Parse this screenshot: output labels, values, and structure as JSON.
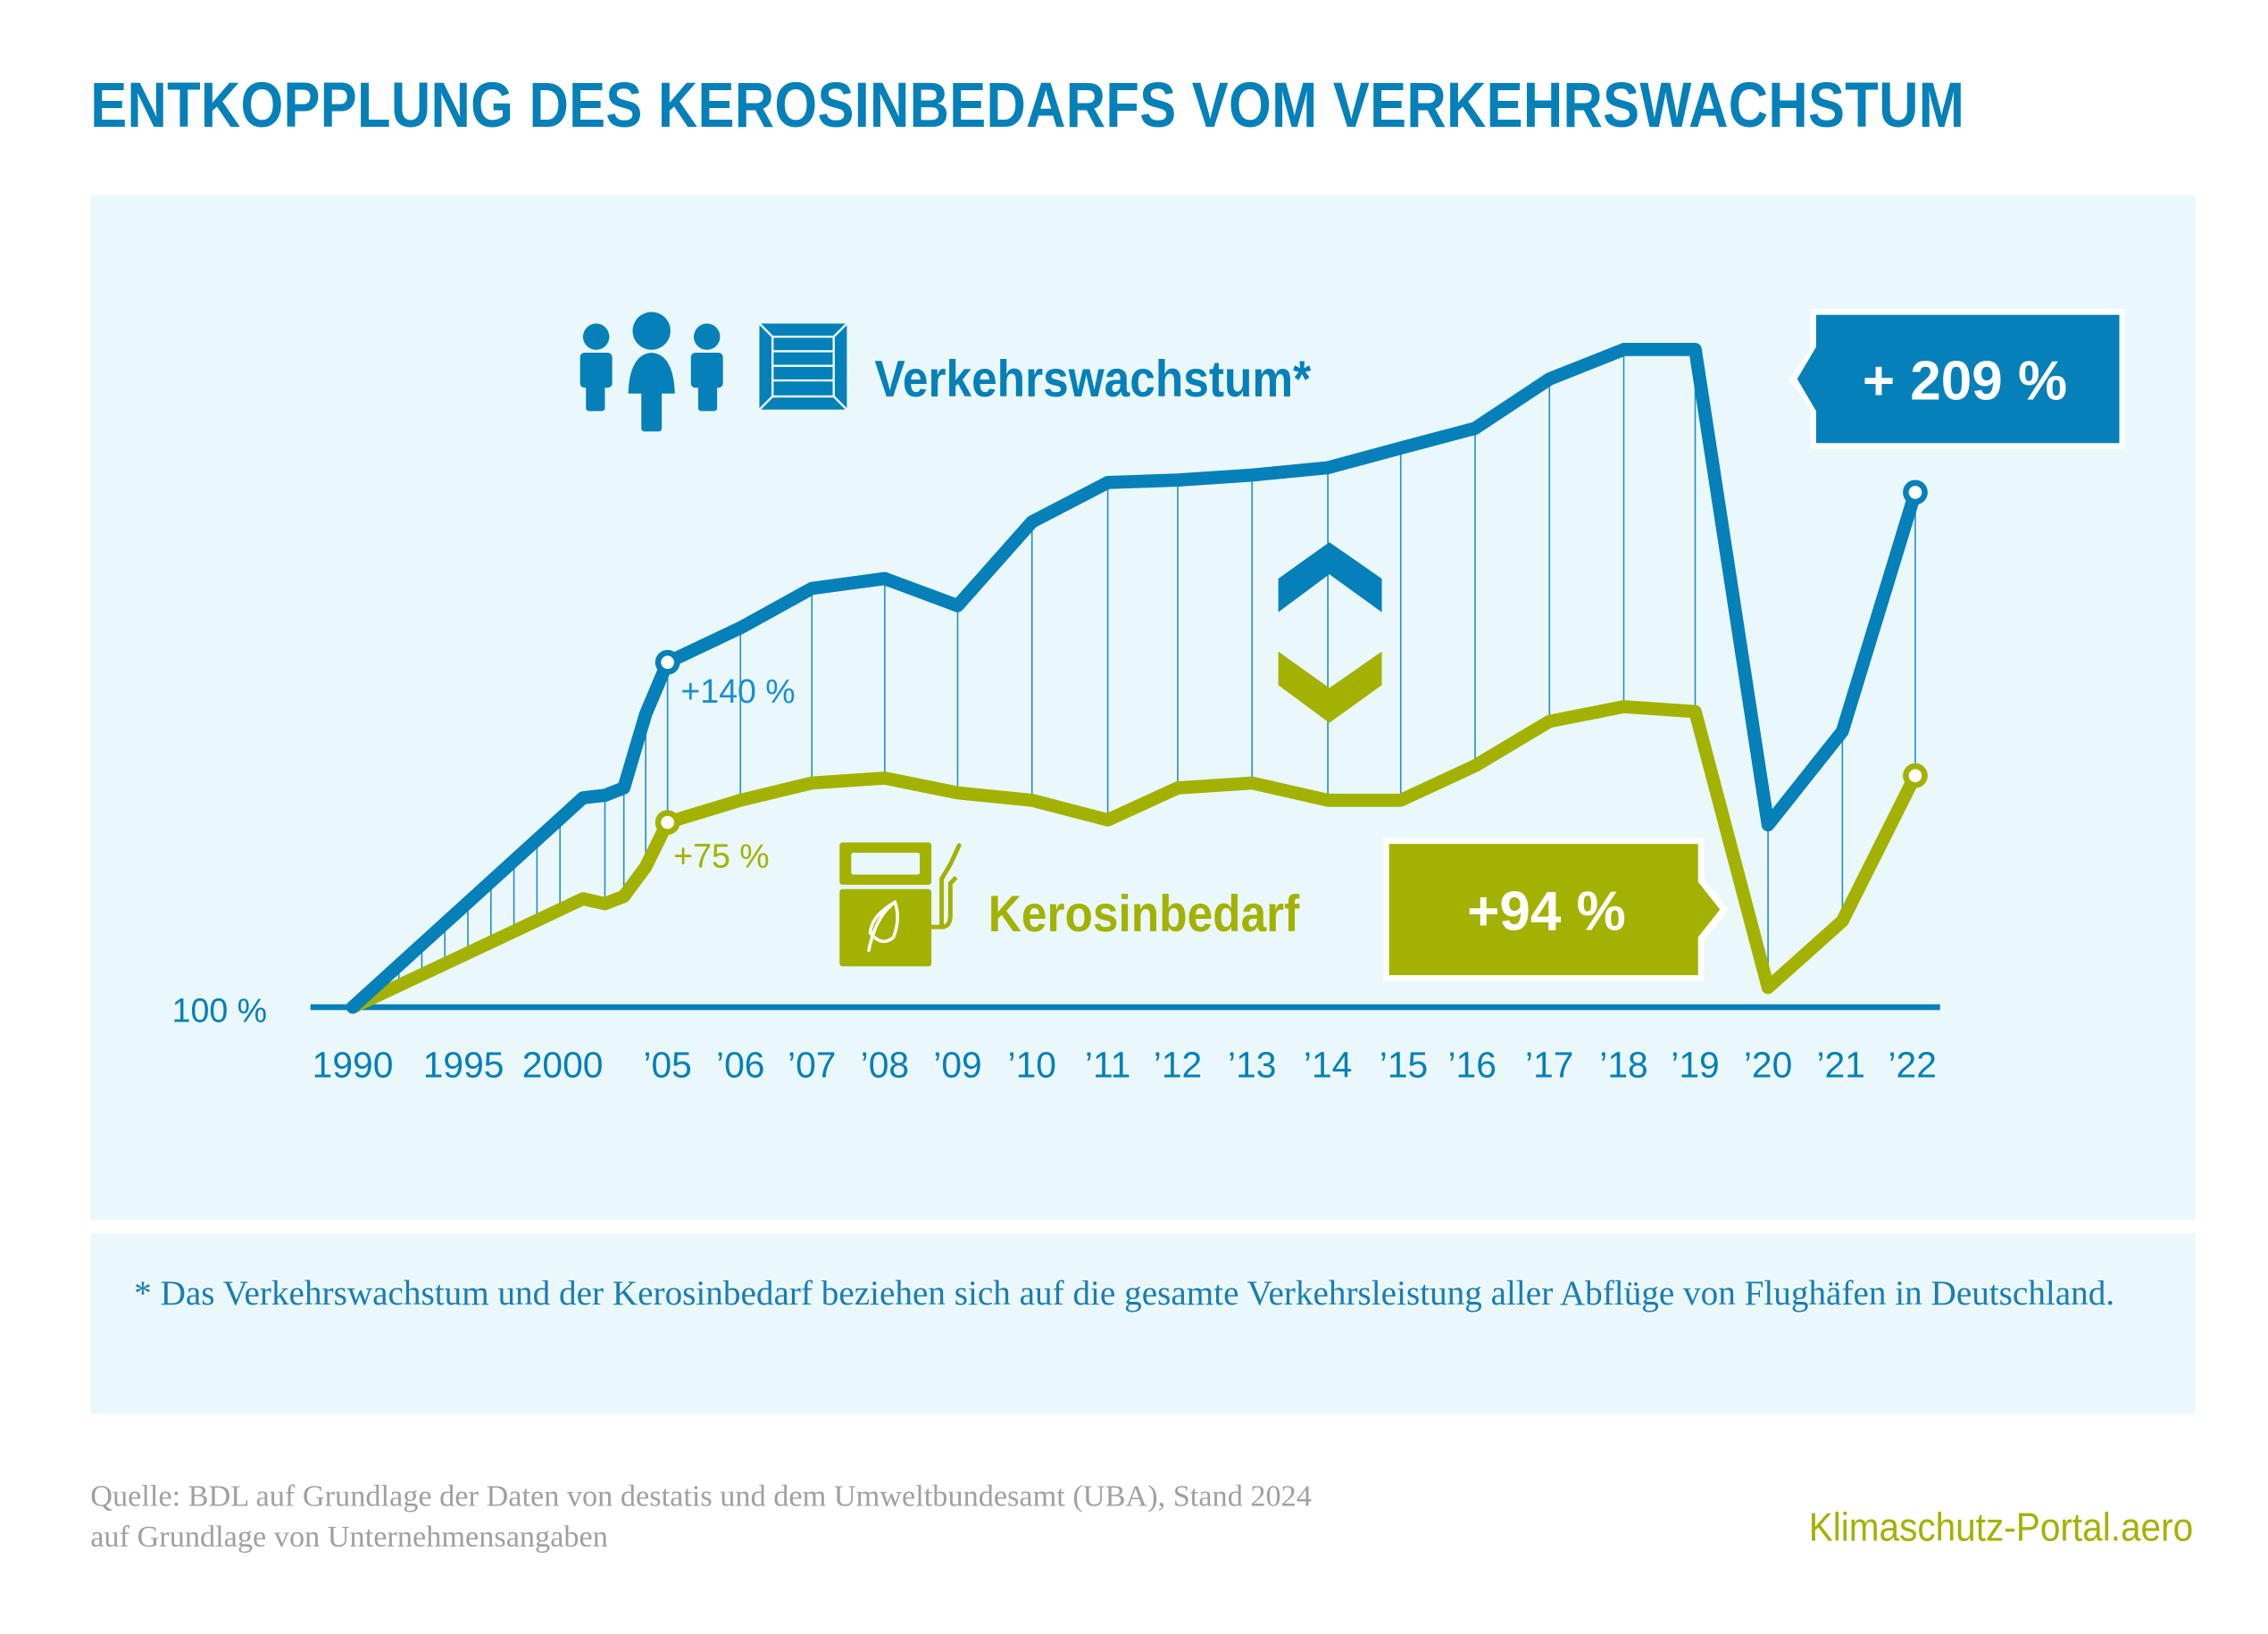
{
  "title": "ENTKOPPLUNG DES KEROSINBEDARFS VOM VERKEHRSWACHSTUM",
  "colors": {
    "traffic": "#0580b8",
    "kerosene": "#a3b200",
    "panel_bg": "#eaf8fc",
    "source_text": "#a0a0a0"
  },
  "legend": {
    "traffic_label": "Verkehrswachstum*",
    "traffic_icons": [
      "people-icon",
      "cargo-crate-icon"
    ],
    "kerosene_label": "Kerosinbedarf",
    "kerosene_icon": "fuel-pump-leaf-icon"
  },
  "badges": {
    "traffic_total": "+ 209 %",
    "kerosene_total": "+94 %"
  },
  "annotations": {
    "traffic_2005": "+140 %",
    "kerosene_2005": "+75 %"
  },
  "footnote": "* Das Verkehrswachstum und der Kerosinbedarf beziehen sich auf die gesamte Verkehrsleistung aller Abflüge von Flughäfen in Deutschland.",
  "source_line1": "Quelle: BDL auf Grundlage der Daten von destatis und dem Umweltbundesamt (UBA), Stand 2024",
  "source_line2": "auf Grundlage von Unternehmensangaben",
  "brand": "Klimaschutz-Portal.aero",
  "chart_data": {
    "type": "line",
    "title": "ENTKOPPLUNG DES KEROSINBEDARFS VOM VERKEHRSWACHSTUM",
    "xlabel": "",
    "ylabel": "",
    "baseline_label": "100 %",
    "baseline_value": 100,
    "ylim": [
      100,
      370
    ],
    "grid": false,
    "x": [
      1990,
      2000,
      2001,
      2003,
      2004,
      2005,
      2006,
      2007,
      2008,
      2009,
      2010,
      2011,
      2012,
      2013,
      2014,
      2015,
      2016,
      2017,
      2018,
      2019,
      2020,
      2021,
      2022
    ],
    "x_tick_labels": [
      "1990",
      "1995",
      "2000",
      "'05",
      "'06",
      "'07",
      "'08",
      "'09",
      "'10",
      "'11",
      "'12",
      "'13",
      "'14",
      "'15",
      "'16",
      "'17",
      "'18",
      "'19",
      "'20",
      "'21",
      "'22"
    ],
    "series": [
      {
        "name": "Verkehrswachstum",
        "unit": "% (1990 = 100 %)",
        "values": [
          100,
          185,
          186,
          189,
          219,
          240,
          254,
          270,
          274,
          263,
          297,
          313,
          314,
          316,
          319,
          327,
          335,
          355,
          367,
          367,
          174,
          212,
          309
        ]
      },
      {
        "name": "Kerosinbedarf",
        "unit": "% (1990 = 100 %)",
        "values": [
          100,
          144,
          142,
          145,
          157,
          175,
          184,
          191,
          193,
          187,
          184,
          176,
          189,
          191,
          184,
          184,
          198,
          216,
          222,
          220,
          108,
          135,
          194
        ]
      }
    ],
    "labeled_points": [
      {
        "series": "Verkehrswachstum",
        "x": 2005,
        "label": "+140 %"
      },
      {
        "series": "Kerosinbedarf",
        "x": 2005,
        "label": "+75 %"
      },
      {
        "series": "Verkehrswachstum",
        "x": 2022,
        "label": "+ 209 %"
      },
      {
        "series": "Kerosinbedarf",
        "x": 2022,
        "label": "+94 %"
      }
    ],
    "legend_position": "inline"
  }
}
